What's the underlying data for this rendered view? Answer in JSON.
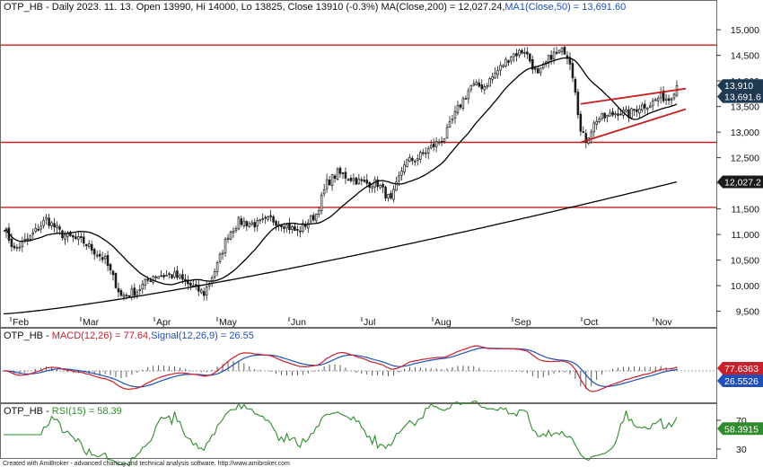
{
  "chart_data": [
    {
      "type": "candlestick",
      "title": "OTP_HB - Daily 2023. 11. 13. Open 13990, Hi 14000, Lo 13825, Close 13910 (-0.3%)",
      "ma200_label": "MA(Close,200) = 12,027.24,",
      "ma50_label": "MA1(Close,50) = 13,691.60",
      "ylim": [
        9300,
        15300
      ],
      "yticks": [
        9500,
        10000,
        10500,
        11000,
        11500,
        12000,
        12500,
        13000,
        13500,
        14000,
        14500,
        15000
      ],
      "ytick_labels": [
        "9,500",
        "10,000",
        "10,500",
        "11,000",
        "11,500",
        "12,000",
        "12,500",
        "13,000",
        "13,500",
        "14,000",
        "14,500",
        "15,000"
      ],
      "months": [
        "Feb",
        "Mar",
        "Apr",
        "May",
        "Jun",
        "Jul",
        "Aug",
        "Sep",
        "Oct",
        "Nov"
      ],
      "horizontal_levels": [
        14700,
        12800,
        11530
      ],
      "value_tags": [
        {
          "text": "13,910",
          "value": 13910
        },
        {
          "text": "13,691.6",
          "value": 13691.6
        },
        {
          "text": "12,027.2",
          "value": 12027.2
        }
      ],
      "close_anchors": [
        [
          0,
          11150
        ],
        [
          4,
          10700
        ],
        [
          10,
          10950
        ],
        [
          16,
          11300
        ],
        [
          22,
          11000
        ],
        [
          30,
          10850
        ],
        [
          38,
          10500
        ],
        [
          44,
          9800
        ],
        [
          50,
          9900
        ],
        [
          56,
          10200
        ],
        [
          64,
          10200
        ],
        [
          70,
          10000
        ],
        [
          75,
          9850
        ],
        [
          80,
          10400
        ],
        [
          84,
          11000
        ],
        [
          88,
          11250
        ],
        [
          95,
          11200
        ],
        [
          100,
          11300
        ],
        [
          105,
          11200
        ],
        [
          110,
          11050
        ],
        [
          117,
          11400
        ],
        [
          121,
          12000
        ],
        [
          125,
          12200
        ],
        [
          130,
          12100
        ],
        [
          135,
          12000
        ],
        [
          140,
          12000
        ],
        [
          145,
          11650
        ],
        [
          150,
          12400
        ],
        [
          155,
          12500
        ],
        [
          160,
          12700
        ],
        [
          165,
          12900
        ],
        [
          170,
          13450
        ],
        [
          175,
          13900
        ],
        [
          180,
          13900
        ],
        [
          185,
          14200
        ],
        [
          190,
          14500
        ],
        [
          195,
          14600
        ],
        [
          200,
          14100
        ],
        [
          205,
          14500
        ],
        [
          210,
          14600
        ],
        [
          212,
          14400
        ],
        [
          214,
          13850
        ],
        [
          216,
          13000
        ],
        [
          218,
          12850
        ],
        [
          222,
          13250
        ],
        [
          226,
          13300
        ],
        [
          230,
          13400
        ],
        [
          234,
          13350
        ],
        [
          238,
          13500
        ],
        [
          242,
          13550
        ],
        [
          246,
          13700
        ],
        [
          249,
          13650
        ],
        [
          252,
          13910
        ]
      ],
      "triangle_lines": [
        {
          "from": [
            216,
            13550
          ],
          "to": [
            252,
            13850
          ]
        },
        {
          "from": [
            216,
            12800
          ],
          "to": [
            252,
            13450
          ]
        }
      ]
    },
    {
      "type": "line",
      "title": "OTP_HB - MACD(12,26) = 77.64, Signal(12,26,9) = 26.55",
      "macd_label": "MACD(12,26) = 77.64,",
      "signal_label": "Signal(12,26,9) = 26.55",
      "series": [
        {
          "name": "MACD(12,26)",
          "last": 77.6363
        },
        {
          "name": "Signal(12,26,9)",
          "last": 26.5526
        }
      ],
      "value_tags": [
        {
          "text": "77.6363",
          "color": "#c8202c"
        },
        {
          "text": "26.5526",
          "color": "#1f4fb8"
        }
      ]
    },
    {
      "type": "line",
      "title": "OTP_HB - RSI(15) = 58.39",
      "rsi_label": "RSI(15) = 58.39",
      "ylim": [
        20,
        90
      ],
      "yticks": [
        30,
        70
      ],
      "series": [
        {
          "name": "RSI(15)",
          "last": 58.3915
        }
      ],
      "value_tags": [
        {
          "text": "58.3915",
          "color": "#2e8b2e"
        }
      ]
    }
  ],
  "header": {
    "price_prefix": "OTP_HB - Daily 2023. 11. 13. Open 13990, Hi 14000, Lo 13825, Close 13910 (-0.3%) ",
    "macd_prefix": "OTP_HB - ",
    "rsi_prefix": "OTP_HB - "
  },
  "footer": "Created with AmiBroker - advanced charting and technical analysis software. http://www.amibroker.com",
  "colors": {
    "background": "#ffffff",
    "candles": "#1a1a1a",
    "moving_averages": "#000000",
    "levels": "#c81e1e",
    "macd": "#c8202c",
    "signal": "#1f4fb8",
    "rsi": "#2e8b2e",
    "price_tag": "#1e3a52"
  }
}
